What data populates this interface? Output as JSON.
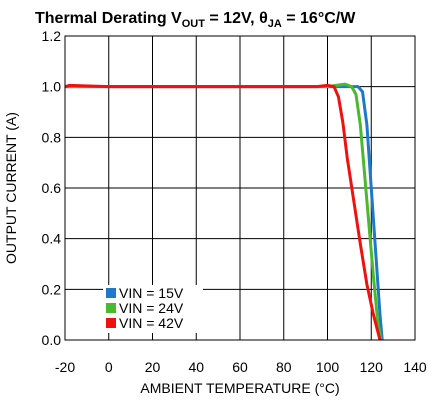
{
  "chart_data": {
    "type": "line",
    "title": {
      "prefix": "Thermal Derating V",
      "sub1": "OUT",
      "middle": " = 12V, θ",
      "sub2": "JA",
      "suffix": " = 16°C/W"
    },
    "xlabel": "AMBIENT TEMPERATURE (°C)",
    "ylabel": "OUTPUT CURRENT (A)",
    "xlim": [
      -20,
      140
    ],
    "ylim": [
      0.0,
      1.2
    ],
    "x_ticks": [
      -20,
      0,
      20,
      40,
      60,
      80,
      100,
      120,
      140
    ],
    "x_tick_labels": [
      "-20",
      "0",
      "20",
      "40",
      "60",
      "80",
      "100",
      "120",
      "140"
    ],
    "y_ticks": [
      0.0,
      0.2,
      0.4,
      0.6,
      0.8,
      1.0,
      1.2
    ],
    "y_tick_labels": [
      "0.0",
      "0.2",
      "0.4",
      "0.6",
      "0.8",
      "1.0",
      "1.2"
    ],
    "grid": true,
    "legend_position": "bottom-left",
    "series": [
      {
        "name": "VIN = 15V",
        "color": "#1f78c8",
        "x": [
          -20,
          0,
          50,
          100,
          110,
          114,
          116,
          118,
          120,
          122,
          124,
          125
        ],
        "y": [
          1.0,
          1.0,
          1.0,
          1.0,
          1.0,
          1.0,
          0.98,
          0.85,
          0.6,
          0.35,
          0.1,
          0.0
        ]
      },
      {
        "name": "VIN = 24V",
        "color": "#4cb82e",
        "x": [
          -20,
          0,
          50,
          100,
          108,
          111,
          113,
          115,
          117,
          119,
          121,
          123,
          124.5
        ],
        "y": [
          1.0,
          1.0,
          1.0,
          1.0,
          1.01,
          1.0,
          0.97,
          0.85,
          0.65,
          0.45,
          0.25,
          0.07,
          0.0
        ]
      },
      {
        "name": "VIN = 42V",
        "color": "#ee1111",
        "x": [
          -20,
          -18,
          0,
          50,
          95,
          100,
          103,
          105,
          107,
          109,
          112,
          115,
          118,
          121,
          124
        ],
        "y": [
          1.0,
          1.005,
          1.0,
          1.0,
          1.0,
          1.005,
          1.0,
          0.96,
          0.86,
          0.72,
          0.55,
          0.38,
          0.22,
          0.1,
          0.0
        ]
      }
    ]
  }
}
